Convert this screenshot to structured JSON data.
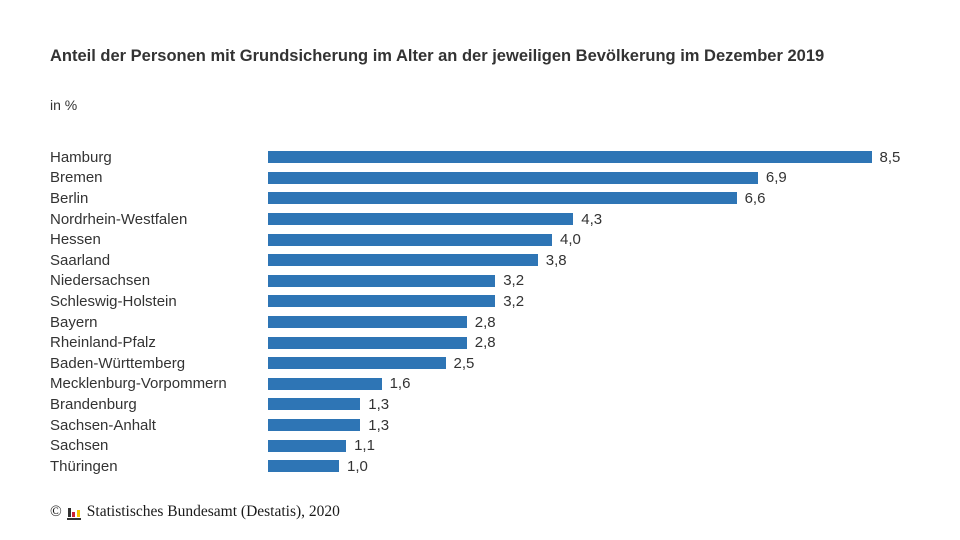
{
  "title": "Anteil der Personen mit Grundsicherung im Alter an der jeweiligen Bevölkerung im Dezember 2019",
  "subtitle": "in %",
  "footer": {
    "copyright_symbol": "©",
    "source_text": "Statistisches Bundesamt (Destatis), 2020"
  },
  "brand": {
    "logo_bar_colors": [
      "#333333",
      "#cc2233",
      "#f8c800"
    ],
    "logo_baseline_color": "#333333"
  },
  "chart_data": {
    "type": "bar",
    "orientation": "horizontal",
    "title": "Anteil der Personen mit Grundsicherung im Alter an der jeweiligen Bevölkerung im Dezember 2019",
    "unit_label": "in %",
    "categories": [
      "Hamburg",
      "Bremen",
      "Berlin",
      "Nordrhein-Westfalen",
      "Hessen",
      "Saarland",
      "Niedersachsen",
      "Schleswig-Holstein",
      "Bayern",
      "Rheinland-Pfalz",
      "Baden-Württemberg",
      "Mecklenburg-Vorpommern",
      "Brandenburg",
      "Sachsen-Anhalt",
      "Sachsen",
      "Thüringen"
    ],
    "values": [
      8.5,
      6.9,
      6.6,
      4.3,
      4.0,
      3.8,
      3.2,
      3.2,
      2.8,
      2.8,
      2.5,
      1.6,
      1.3,
      1.3,
      1.1,
      1.0
    ],
    "value_labels": [
      "8,5",
      "6,9",
      "6,6",
      "4,3",
      "4,0",
      "3,8",
      "3,2",
      "3,2",
      "2,8",
      "2,8",
      "2,5",
      "1,6",
      "1,3",
      "1,3",
      "1,1",
      "1,0"
    ],
    "xlim": [
      0,
      9
    ],
    "grid": false,
    "legend": false,
    "bar_color": "#2E75B5",
    "value_label_position": "end-of-bar"
  }
}
